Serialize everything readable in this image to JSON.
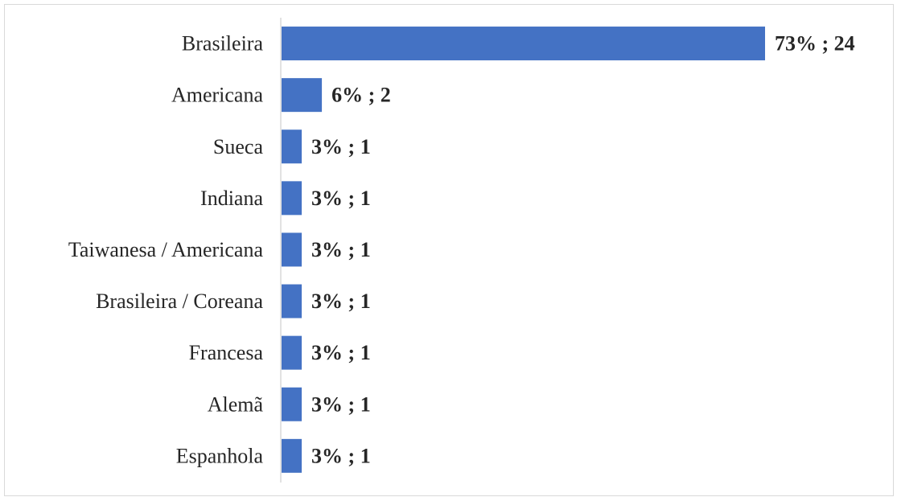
{
  "chart_data": {
    "type": "bar",
    "orientation": "horizontal",
    "categories": [
      "Brasileira",
      "Americana",
      "Sueca",
      "Indiana",
      "Taiwanesa / Americana",
      "Brasileira / Coreana",
      "Francesa",
      "Alemã",
      "Espanhola"
    ],
    "series": [
      {
        "values": [
          24,
          2,
          1,
          1,
          1,
          1,
          1,
          1,
          1
        ],
        "percentages": [
          73,
          6,
          3,
          3,
          3,
          3,
          3,
          3,
          3
        ],
        "data_labels": [
          "73% ; 24",
          "6% ; 2",
          "3% ; 1",
          "3% ; 1",
          "3% ; 1",
          "3% ; 1",
          "3% ; 1",
          "3% ; 1",
          "3% ; 1"
        ]
      }
    ],
    "title": "",
    "xlabel": "",
    "ylabel": "",
    "xlim": [
      0,
      24
    ],
    "grid": false,
    "legend": "none",
    "bar_color": "#4472C4",
    "axis_color": "#d9d9d9",
    "label_color": "#262626"
  }
}
